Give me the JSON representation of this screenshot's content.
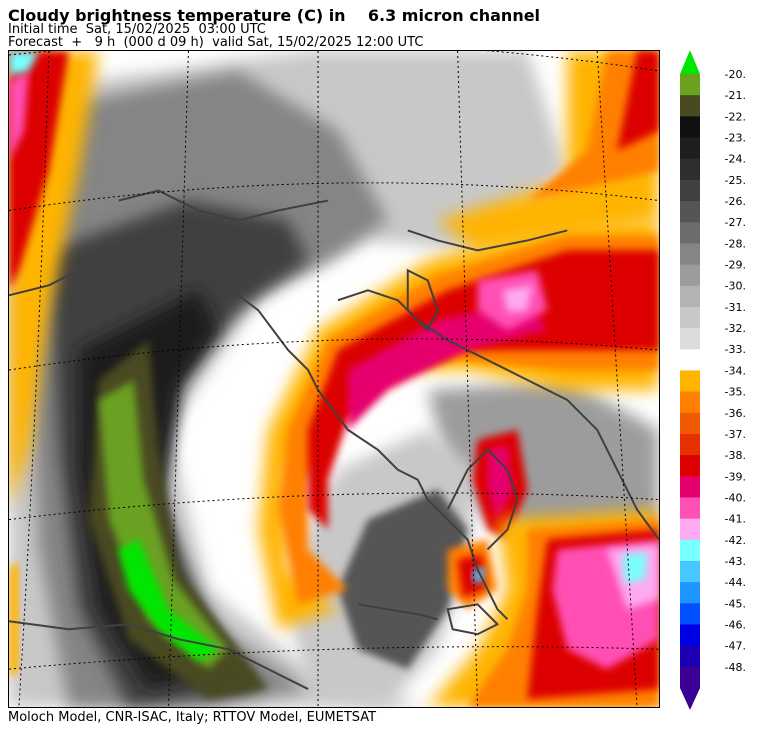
{
  "title": "Cloudy brightness temperature (C) in    6.3 micron channel",
  "initial_time": "Initial time  Sat, 15/02/2025  03:00 UTC",
  "forecast": "Forecast  +   9 h  (000 d 09 h)  valid Sat, 15/02/2025 12:00 UTC",
  "footer": "Moloch Model, CNR-ISAC, Italy; RTTOV Model, EUMETSAT",
  "colorbar": {
    "unit": "C",
    "labels": [
      "-20.",
      "-21.",
      "-22.",
      "-23.",
      "-24.",
      "-25.",
      "-26.",
      "-27.",
      "-28.",
      "-29.",
      "-30.",
      "-31.",
      "-32.",
      "-33.",
      "-34.",
      "-35.",
      "-36.",
      "-37.",
      "-38.",
      "-39.",
      "-40.",
      "-41.",
      "-42.",
      "-43.",
      "-44.",
      "-45.",
      "-46.",
      "-47.",
      "-48."
    ],
    "colors": [
      "#6aa121",
      "#4a4a22",
      "#101010",
      "#1e1e1e",
      "#2e2e2e",
      "#404040",
      "#555555",
      "#6c6c6c",
      "#858585",
      "#9c9c9c",
      "#b3b3b3",
      "#c8c8c8",
      "#dcdcdc",
      "#ffffff",
      "#ffb400",
      "#ff8000",
      "#f05a00",
      "#e63200",
      "#dc0000",
      "#e6006e",
      "#ff50b4",
      "#ffaaf0",
      "#78ffff",
      "#46c8ff",
      "#1e96ff",
      "#0050ff",
      "#0000e6",
      "#1e00b4",
      "#3c0096"
    ],
    "top_arrow_color": "#00e600",
    "bottom_arrow_color": "#3c0096"
  },
  "map_colors": {
    "background_white": "#ffffff",
    "light_gray": "#c8c8c8",
    "mid_gray": "#858585",
    "dark_gray": "#404040",
    "near_black": "#1e1e1e",
    "olive": "#4a4a22",
    "green": "#6aa121",
    "bright_green": "#00e600",
    "yellow": "#ffb400",
    "orange": "#ff8000",
    "red": "#dc0000",
    "magenta": "#e6006e",
    "pink": "#ff50b4",
    "light_pink": "#ffaaf0",
    "cyan": "#78ffff",
    "coast": "#404040"
  }
}
